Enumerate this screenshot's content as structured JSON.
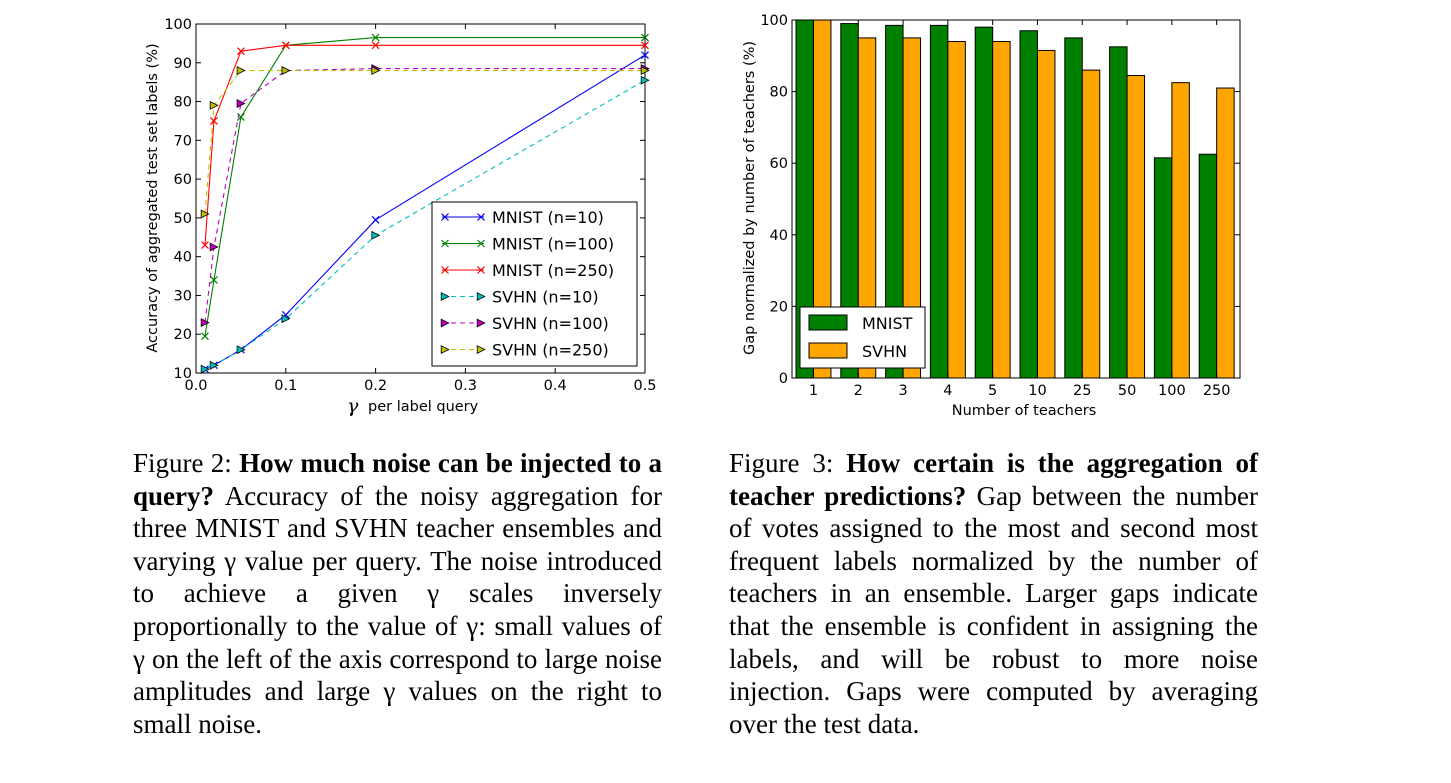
{
  "figure2": {
    "chart_data": {
      "type": "line",
      "xlabel_symbol": "γ",
      "xlabel": "per label query",
      "ylabel": "Accuracy of aggregated test set labels (%)",
      "xlim": [
        0.0,
        0.5
      ],
      "ylim": [
        10,
        100
      ],
      "x_ticks": [
        "0.0",
        "0.1",
        "0.2",
        "0.3",
        "0.4",
        "0.5"
      ],
      "y_ticks": [
        "10",
        "20",
        "30",
        "40",
        "50",
        "60",
        "70",
        "80",
        "90",
        "100"
      ],
      "legend_position": "lower-right",
      "series": [
        {
          "name": "MNIST (n=10)",
          "color": "#0000ff",
          "marker": "x",
          "linestyle": "solid",
          "x": [
            0.01,
            0.02,
            0.05,
            0.1,
            0.2,
            0.5
          ],
          "y": [
            11.0,
            12.0,
            16.0,
            25.0,
            49.5,
            92.0
          ]
        },
        {
          "name": "MNIST (n=100)",
          "color": "#008000",
          "marker": "x",
          "linestyle": "solid",
          "x": [
            0.01,
            0.02,
            0.05,
            0.1,
            0.2,
            0.5
          ],
          "y": [
            19.5,
            34.0,
            76.0,
            94.5,
            96.5,
            96.5
          ]
        },
        {
          "name": "MNIST (n=250)",
          "color": "#ff0000",
          "marker": "x",
          "linestyle": "solid",
          "x": [
            0.01,
            0.02,
            0.05,
            0.1,
            0.2,
            0.5
          ],
          "y": [
            43.0,
            75.0,
            93.0,
            94.5,
            94.5,
            94.5
          ]
        },
        {
          "name": "SVHN (n=10)",
          "color": "#00bfbf",
          "marker": "triangle-right",
          "linestyle": "dashed",
          "x": [
            0.01,
            0.02,
            0.05,
            0.1,
            0.2,
            0.5
          ],
          "y": [
            11.0,
            12.0,
            16.0,
            24.0,
            45.5,
            85.5
          ]
        },
        {
          "name": "SVHN (n=100)",
          "color": "#bf00bf",
          "marker": "triangle-right",
          "linestyle": "dashed",
          "x": [
            0.01,
            0.02,
            0.05,
            0.1,
            0.2,
            0.5
          ],
          "y": [
            23.0,
            42.5,
            79.5,
            88.0,
            88.5,
            88.5
          ]
        },
        {
          "name": "SVHN (n=250)",
          "color": "#bfbf00",
          "marker": "triangle-right",
          "linestyle": "dashed",
          "x": [
            0.01,
            0.02,
            0.05,
            0.1,
            0.2,
            0.5
          ],
          "y": [
            51.0,
            79.0,
            88.0,
            88.0,
            88.0,
            88.0
          ]
        }
      ]
    },
    "caption": {
      "prefix": "Figure 2: ",
      "bold": "How much noise can be injected to a query?",
      "text": " Accuracy of the noisy aggregation for three MNIST and SVHN teacher ensembles and varying γ value per query. The noise introduced to achieve a given γ scales inversely proportionally to the value of γ: small values of γ on the left of the axis correspond to large noise amplitudes and large γ values on the right to small noise."
    }
  },
  "figure3": {
    "chart_data": {
      "type": "bar",
      "xlabel": "Number of teachers",
      "ylabel": "Gap normalized by number of teachers (%)",
      "categories": [
        "1",
        "2",
        "3",
        "4",
        "5",
        "10",
        "25",
        "50",
        "100",
        "250"
      ],
      "ylim": [
        0,
        100
      ],
      "y_ticks": [
        "0",
        "20",
        "40",
        "60",
        "80",
        "100"
      ],
      "legend_position": "lower-left",
      "series": [
        {
          "name": "MNIST",
          "color": "#008000",
          "values": [
            100,
            99,
            98.5,
            98.5,
            98,
            97,
            95,
            92.5,
            61.5,
            62.5
          ]
        },
        {
          "name": "SVHN",
          "color": "#ffa500",
          "values": [
            100,
            95,
            95,
            94,
            94,
            91.5,
            86,
            84.5,
            82.5,
            81
          ]
        }
      ]
    },
    "caption": {
      "prefix": "Figure 3: ",
      "bold": "How certain is the aggregation of teacher predictions?",
      "text": " Gap between the number of votes assigned to the most and second most frequent labels normalized by the number of teachers in an ensemble. Larger gaps indicate that the ensemble is confident in assigning the labels, and will be robust to more noise injection. Gaps were computed by averaging over the test data."
    }
  }
}
